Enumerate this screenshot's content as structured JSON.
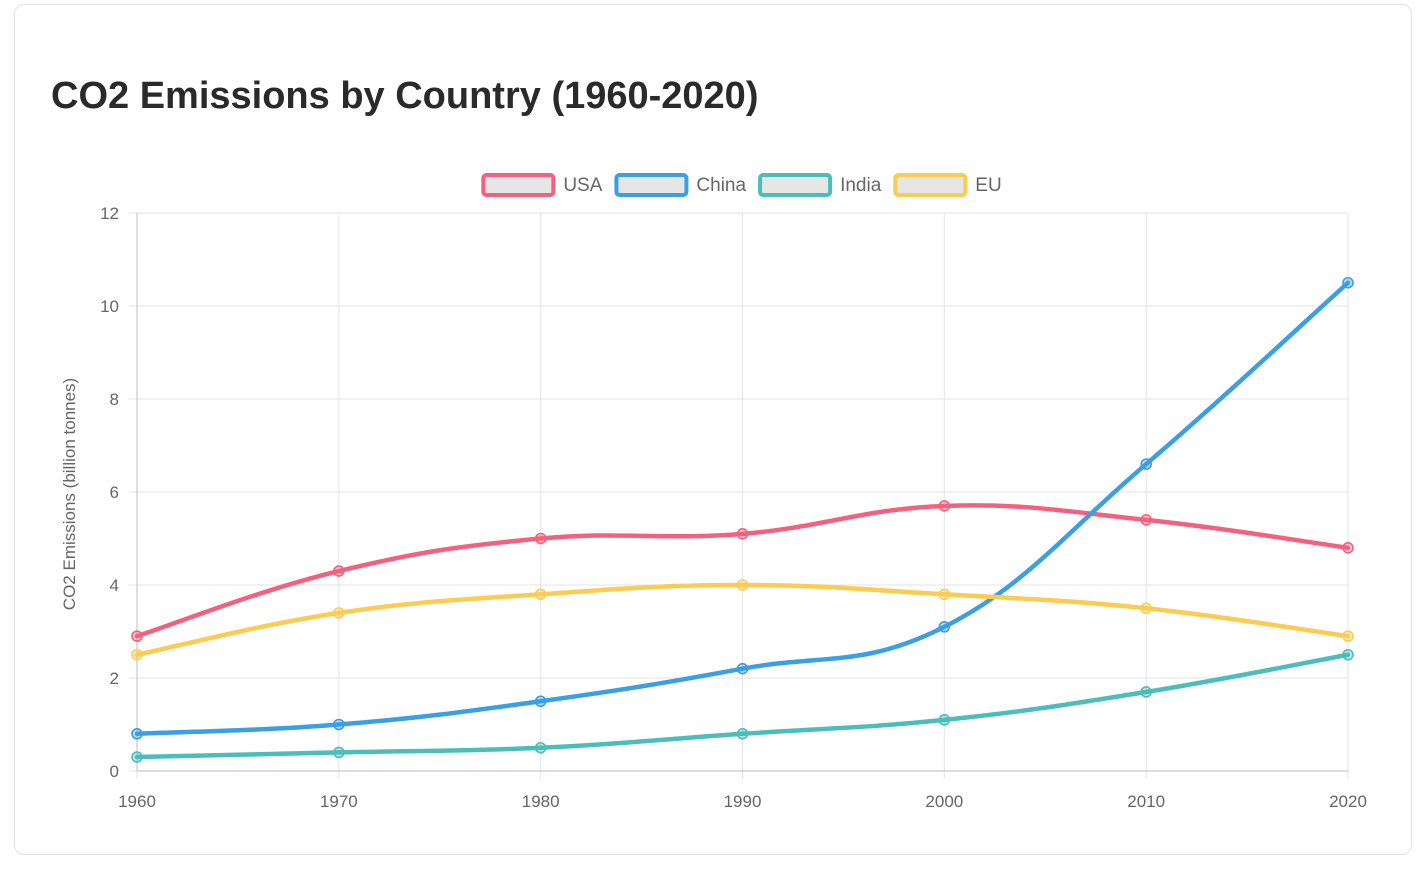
{
  "chart_data": {
    "type": "line",
    "title": "CO2 Emissions by Country (1960-2020)",
    "xlabel": "",
    "ylabel": "CO2 Emissions (billion tonnes)",
    "x": [
      "1960",
      "1970",
      "1980",
      "1990",
      "2000",
      "2010",
      "2020"
    ],
    "ylim": [
      0,
      12
    ],
    "yticks": [
      "0",
      "2",
      "4",
      "6",
      "8",
      "10",
      "12"
    ],
    "grid": true,
    "legend_position": "top-center",
    "series": [
      {
        "name": "USA",
        "color": "#f4607f",
        "values": [
          2.9,
          4.3,
          5.0,
          5.1,
          5.7,
          5.4,
          4.8
        ]
      },
      {
        "name": "China",
        "color": "#3a9fe3",
        "values": [
          0.8,
          1.0,
          1.5,
          2.2,
          3.1,
          6.6,
          10.5
        ]
      },
      {
        "name": "India",
        "color": "#4bbdbb",
        "values": [
          0.3,
          0.4,
          0.5,
          0.8,
          1.1,
          1.7,
          2.5
        ]
      },
      {
        "name": "EU",
        "color": "#fccb52",
        "values": [
          2.5,
          3.4,
          3.8,
          4.0,
          3.8,
          3.5,
          2.9
        ]
      }
    ]
  }
}
